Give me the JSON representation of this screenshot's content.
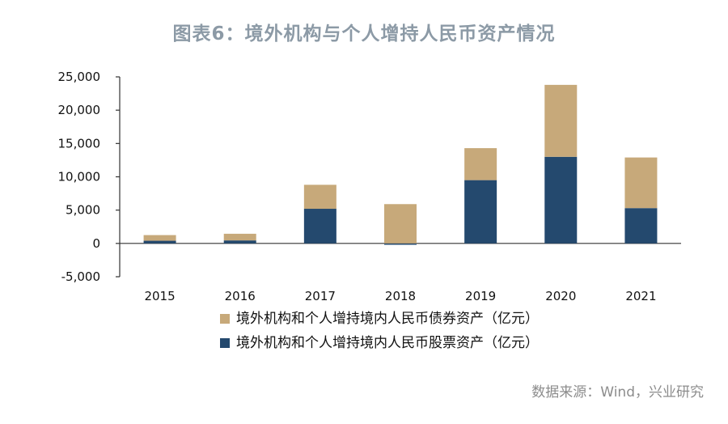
{
  "chart_data": {
    "type": "bar",
    "stacked": true,
    "title": "图表6：境外机构与个人增持人民币资产情况",
    "categories": [
      "2015",
      "2016",
      "2017",
      "2018",
      "2019",
      "2020",
      "2021"
    ],
    "series": [
      {
        "name": "境外机构和个人增持境内人民币股票资产（亿元）",
        "color": "#24496e",
        "values": [
          400,
          450,
          5200,
          -200,
          9500,
          13000,
          5300
        ]
      },
      {
        "name": "境外机构和个人增持境内人民币债券资产（亿元）",
        "color": "#c7a97a",
        "values": [
          850,
          1000,
          3600,
          5900,
          4800,
          10800,
          7600
        ]
      }
    ],
    "ylim": [
      -5000,
      25000
    ],
    "yticks": [
      "25,000",
      "20,000",
      "15,000",
      "10,000",
      "5,000",
      "0",
      "-5,000"
    ],
    "ytick_values": [
      25000,
      20000,
      15000,
      10000,
      5000,
      0,
      -5000
    ],
    "legend_position": "bottom",
    "xlabel": "",
    "ylabel": ""
  },
  "source": "数据来源：Wind，兴业研究"
}
